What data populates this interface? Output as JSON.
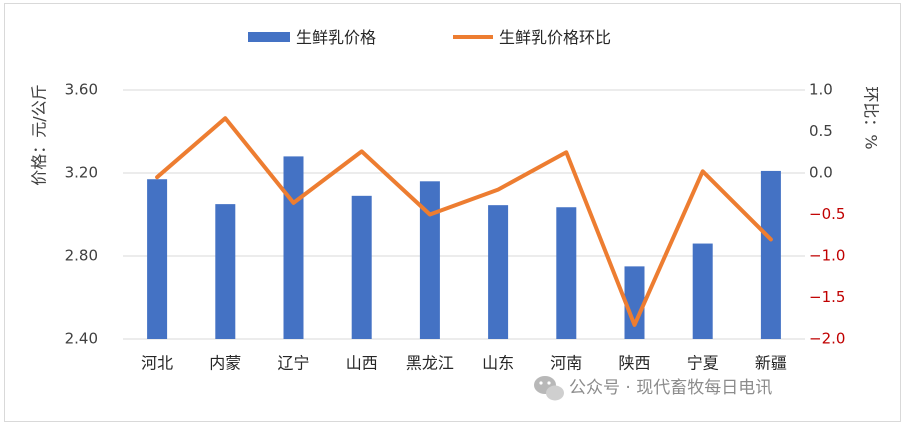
{
  "chart_data": {
    "type": "bar",
    "categories": [
      "河北",
      "内蒙",
      "辽宁",
      "山西",
      "黑龙江",
      "山东",
      "河南",
      "陕西",
      "宁夏",
      "新疆"
    ],
    "series": [
      {
        "name": "生鲜乳价格",
        "type": "bar",
        "axis": "left",
        "color": "#4472c4",
        "values": [
          3.17,
          3.05,
          3.28,
          3.09,
          3.16,
          3.045,
          3.035,
          2.75,
          2.86,
          3.21
        ]
      },
      {
        "name": "生鲜乳价格环比",
        "type": "line",
        "axis": "right",
        "color": "#ed7d31",
        "values": [
          -0.05,
          0.66,
          -0.36,
          0.26,
          -0.5,
          -0.2,
          0.25,
          -1.83,
          0.02,
          -0.8
        ]
      }
    ],
    "y_left": {
      "label": "价格：元/公斤",
      "ylim": [
        2.4,
        3.6
      ],
      "ticks": [
        "2.40",
        "2.80",
        "3.20",
        "3.60"
      ],
      "tick_values": [
        2.4,
        2.8,
        3.2,
        3.6
      ]
    },
    "y_right": {
      "label": "环比：%",
      "ylim": [
        -2.0,
        1.0
      ],
      "ticks": [
        "−2.0",
        "−1.5",
        "−1.0",
        "−0.5",
        "0.0",
        "0.5",
        "1.0"
      ],
      "tick_values": [
        -2.0,
        -1.5,
        -1.0,
        -0.5,
        0.0,
        0.5,
        1.0
      ],
      "negative_tick_color": "#c00000",
      "positive_tick_color": "#404040"
    },
    "grid": true,
    "legend_position": "top-center"
  },
  "watermark": {
    "icon": "wechat-icon",
    "text": "公众号 · 现代畜牧每日电讯"
  }
}
